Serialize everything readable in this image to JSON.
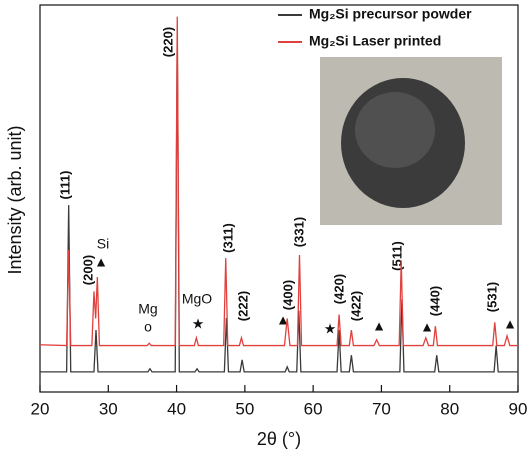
{
  "chart_data": {
    "type": "line",
    "xlabel": "2θ (°)",
    "ylabel": "Intensity (arb. unit)",
    "xlim": [
      20,
      90
    ],
    "xticks": [
      20,
      30,
      40,
      50,
      60,
      70,
      80,
      90
    ],
    "ylim": [
      0,
      100
    ],
    "legend": "upper right",
    "series": [
      {
        "name": "Mg₂Si precursor powder",
        "color": "#3a3a3a",
        "x": [
          20,
          23.9,
          24.2,
          24.5,
          27.9,
          28.2,
          28.5,
          35.8,
          36.1,
          36.4,
          39.8,
          40.1,
          40.4,
          42.7,
          43.0,
          43.3,
          47.0,
          47.3,
          47.6,
          49.3,
          49.6,
          49.9,
          55.9,
          56.2,
          56.5,
          57.6,
          57.9,
          58.2,
          63.5,
          63.8,
          64.1,
          65.3,
          65.6,
          65.9,
          72.7,
          73.0,
          73.3,
          77.8,
          78.1,
          78.4,
          86.5,
          86.8,
          87.1,
          90
        ],
        "values": [
          5.2,
          5.2,
          48.3,
          5.2,
          5.2,
          16,
          5.2,
          5.2,
          6,
          5.2,
          5.2,
          93.5,
          5.2,
          5.2,
          6,
          5.2,
          5.2,
          19.1,
          5.2,
          5.2,
          8.3,
          5.2,
          5.2,
          6.5,
          5.2,
          5.2,
          21,
          5.2,
          5.2,
          16,
          5.2,
          5.2,
          9.5,
          5.2,
          5.2,
          24,
          5.2,
          5.2,
          9.5,
          5.2,
          5.2,
          12,
          5.2,
          5.2
        ]
      },
      {
        "name": "Mg₂Si Laser printed",
        "color": "#e0413d",
        "x": [
          20,
          23.9,
          24.2,
          24.5,
          27.6,
          27.9,
          28.15,
          28.4,
          28.7,
          35.7,
          36.0,
          36.3,
          39.8,
          40.1,
          40.4,
          42.6,
          42.9,
          43.2,
          46.9,
          47.2,
          47.5,
          49.2,
          49.5,
          49.8,
          55.8,
          56.2,
          56.6,
          57.7,
          58.0,
          58.3,
          63.5,
          63.8,
          64.1,
          65.3,
          65.6,
          65.9,
          68.9,
          69.3,
          69.7,
          72.6,
          72.9,
          73.2,
          76.1,
          76.5,
          76.9,
          77.6,
          77.9,
          78.2,
          86.3,
          86.6,
          86.9,
          88.0,
          88.4,
          88.8,
          90
        ],
        "values": [
          12.2,
          12,
          36.7,
          12,
          12,
          26,
          19,
          29.7,
          12,
          12,
          12.6,
          12,
          12,
          97,
          12,
          12,
          14,
          12,
          12,
          34.6,
          12,
          12,
          14,
          12,
          12,
          19,
          12,
          12,
          35.4,
          12,
          12,
          20,
          12,
          12,
          16,
          12,
          12,
          13.5,
          12,
          12,
          34,
          12,
          12,
          14,
          12,
          12,
          17,
          12,
          12,
          18,
          12,
          12,
          14.5,
          12,
          12
        ]
      }
    ],
    "annotations": [
      "(111)",
      "(200)",
      "Si",
      "▲",
      "(220)",
      "Mg",
      "o",
      "MgO",
      "★",
      "(311)",
      "(222)",
      "▲",
      "(400)",
      "(331)",
      "★",
      "(420)",
      "(422)",
      "▲",
      "(511)",
      "▲",
      "(440)",
      "(531)",
      "▲"
    ]
  }
}
